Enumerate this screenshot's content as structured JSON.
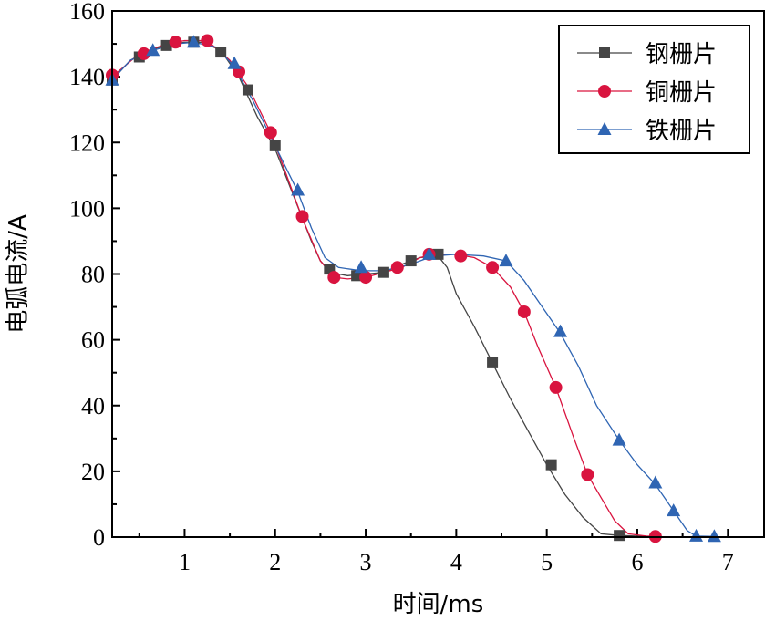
{
  "chart_data": {
    "type": "line",
    "xlabel": "时间/ms",
    "ylabel": "电弧电流/A",
    "xlim": [
      0.2,
      7.4
    ],
    "ylim": [
      0,
      160
    ],
    "xticks": [
      1,
      2,
      3,
      4,
      5,
      6,
      7
    ],
    "yticks": [
      0,
      20,
      40,
      60,
      80,
      100,
      120,
      140,
      160
    ],
    "grid": false,
    "legend_position": "top-right",
    "series": [
      {
        "name": "钢栅片",
        "color": "#454545",
        "marker": "square",
        "line": [
          [
            0.2,
            139
          ],
          [
            0.4,
            145
          ],
          [
            0.6,
            148
          ],
          [
            0.8,
            149.5
          ],
          [
            1.0,
            150.5
          ],
          [
            1.2,
            150.5
          ],
          [
            1.4,
            148
          ],
          [
            1.6,
            140
          ],
          [
            1.8,
            128
          ],
          [
            2.0,
            118
          ],
          [
            2.2,
            104
          ],
          [
            2.4,
            90
          ],
          [
            2.5,
            84
          ],
          [
            2.6,
            81
          ],
          [
            2.7,
            80
          ],
          [
            2.8,
            79.5
          ],
          [
            3.0,
            80
          ],
          [
            3.2,
            80.5
          ],
          [
            3.4,
            83
          ],
          [
            3.6,
            85
          ],
          [
            3.8,
            85.5
          ],
          [
            3.9,
            82
          ],
          [
            4.0,
            74
          ],
          [
            4.2,
            64
          ],
          [
            4.4,
            53
          ],
          [
            4.6,
            42
          ],
          [
            4.8,
            32
          ],
          [
            5.0,
            22
          ],
          [
            5.2,
            13
          ],
          [
            5.4,
            6
          ],
          [
            5.6,
            1
          ],
          [
            5.8,
            0.5
          ],
          [
            6.0,
            0.3
          ],
          [
            6.2,
            0.2
          ]
        ],
        "markers": [
          [
            0.2,
            139
          ],
          [
            0.5,
            146
          ],
          [
            0.8,
            149.5
          ],
          [
            1.1,
            150.5
          ],
          [
            1.4,
            147.5
          ],
          [
            1.7,
            136
          ],
          [
            2.0,
            119
          ],
          [
            2.6,
            81.5
          ],
          [
            2.9,
            79.5
          ],
          [
            3.2,
            80.5
          ],
          [
            3.5,
            84
          ],
          [
            3.8,
            86
          ],
          [
            4.4,
            53
          ],
          [
            5.05,
            22
          ],
          [
            5.8,
            0.5
          ]
        ]
      },
      {
        "name": "铜栅片",
        "color": "#d9143f",
        "marker": "circle",
        "line": [
          [
            0.2,
            140
          ],
          [
            0.5,
            147
          ],
          [
            0.8,
            150
          ],
          [
            1.0,
            151
          ],
          [
            1.25,
            151
          ],
          [
            1.5,
            145
          ],
          [
            1.7,
            137
          ],
          [
            1.95,
            123
          ],
          [
            2.1,
            112
          ],
          [
            2.3,
            97
          ],
          [
            2.5,
            84
          ],
          [
            2.65,
            79
          ],
          [
            2.8,
            78.5
          ],
          [
            3.0,
            79
          ],
          [
            3.2,
            80.5
          ],
          [
            3.4,
            82
          ],
          [
            3.6,
            85
          ],
          [
            3.75,
            86
          ],
          [
            4.0,
            86
          ],
          [
            4.2,
            85
          ],
          [
            4.4,
            82
          ],
          [
            4.6,
            76
          ],
          [
            4.75,
            68.5
          ],
          [
            4.9,
            58
          ],
          [
            5.1,
            45.5
          ],
          [
            5.3,
            30
          ],
          [
            5.45,
            19
          ],
          [
            5.6,
            12
          ],
          [
            5.75,
            5
          ],
          [
            5.9,
            1
          ],
          [
            6.1,
            0.3
          ],
          [
            6.2,
            0.2
          ]
        ],
        "markers": [
          [
            0.2,
            140.5
          ],
          [
            0.55,
            147
          ],
          [
            0.9,
            150.5
          ],
          [
            1.25,
            151
          ],
          [
            1.6,
            141.5
          ],
          [
            1.95,
            123
          ],
          [
            2.3,
            97.5
          ],
          [
            2.65,
            79
          ],
          [
            3.0,
            79
          ],
          [
            3.35,
            82
          ],
          [
            3.7,
            86
          ],
          [
            4.05,
            85.5
          ],
          [
            4.4,
            82
          ],
          [
            4.75,
            68.5
          ],
          [
            5.1,
            45.5
          ],
          [
            5.45,
            19
          ],
          [
            6.2,
            0.2
          ]
        ]
      },
      {
        "name": "铁栅片",
        "color": "#2f65b3",
        "marker": "triangle",
        "line": [
          [
            0.2,
            139
          ],
          [
            0.4,
            145
          ],
          [
            0.65,
            148
          ],
          [
            0.9,
            150
          ],
          [
            1.1,
            150.5
          ],
          [
            1.35,
            149
          ],
          [
            1.55,
            143
          ],
          [
            1.75,
            133
          ],
          [
            2.0,
            119
          ],
          [
            2.25,
            105
          ],
          [
            2.4,
            94
          ],
          [
            2.55,
            85
          ],
          [
            2.7,
            82
          ],
          [
            2.95,
            81
          ],
          [
            3.2,
            81
          ],
          [
            3.5,
            83
          ],
          [
            3.75,
            85.5
          ],
          [
            4.0,
            86
          ],
          [
            4.3,
            85.5
          ],
          [
            4.55,
            84
          ],
          [
            4.75,
            78
          ],
          [
            4.95,
            70
          ],
          [
            5.15,
            62
          ],
          [
            5.35,
            52
          ],
          [
            5.55,
            40
          ],
          [
            5.8,
            29.5
          ],
          [
            6.0,
            22
          ],
          [
            6.2,
            16
          ],
          [
            6.4,
            8
          ],
          [
            6.55,
            2
          ],
          [
            6.65,
            0.3
          ],
          [
            6.85,
            0.2
          ]
        ],
        "markers": [
          [
            0.2,
            139
          ],
          [
            0.65,
            148
          ],
          [
            1.1,
            150.5
          ],
          [
            1.55,
            144
          ],
          [
            2.25,
            105.5
          ],
          [
            2.95,
            82
          ],
          [
            3.7,
            86
          ],
          [
            4.55,
            84
          ],
          [
            5.15,
            62.5
          ],
          [
            5.8,
            29.5
          ],
          [
            6.2,
            16.5
          ],
          [
            6.4,
            8
          ],
          [
            6.65,
            0.3
          ],
          [
            6.85,
            0.2
          ]
        ]
      }
    ]
  }
}
